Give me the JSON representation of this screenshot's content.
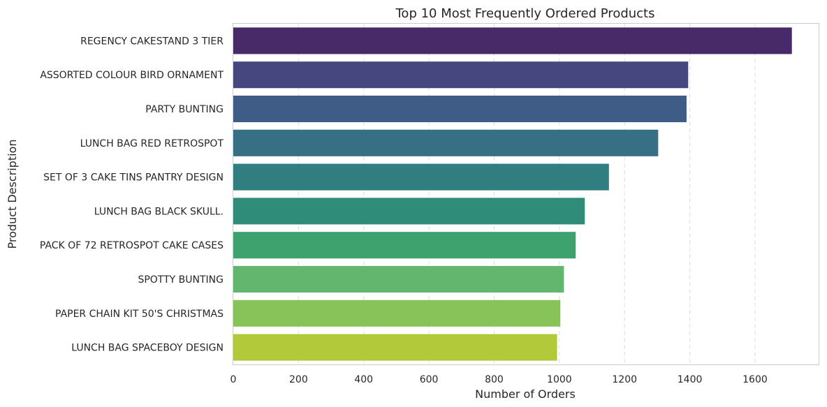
{
  "chart_data": {
    "type": "bar",
    "orientation": "horizontal",
    "title": "Top 10 Most Frequently Ordered Products",
    "xlabel": "Number of Orders",
    "ylabel": "Product Description",
    "xlim": [
      0,
      1795
    ],
    "x_ticks": [
      0,
      200,
      400,
      600,
      800,
      1000,
      1200,
      1400,
      1600
    ],
    "grid": "x-dashed",
    "categories": [
      "REGENCY CAKESTAND 3 TIER",
      "ASSORTED COLOUR BIRD ORNAMENT",
      "PARTY BUNTING",
      "LUNCH BAG RED RETROSPOT",
      "SET OF 3 CAKE TINS PANTRY DESIGN ",
      "LUNCH BAG  BLACK SKULL.",
      "PACK OF 72 RETROSPOT CAKE CASES",
      "SPOTTY BUNTING",
      "PAPER CHAIN KIT 50'S CHRISTMAS ",
      "LUNCH BAG SPACEBOY DESIGN "
    ],
    "values": [
      1713,
      1395,
      1390,
      1303,
      1152,
      1078,
      1050,
      1014,
      1003,
      993
    ],
    "colors": [
      "#482a68",
      "#46477e",
      "#3f5c87",
      "#376f85",
      "#307e80",
      "#2e8c79",
      "#3ea26f",
      "#63b66d",
      "#88c35a",
      "#b2c93a"
    ]
  }
}
